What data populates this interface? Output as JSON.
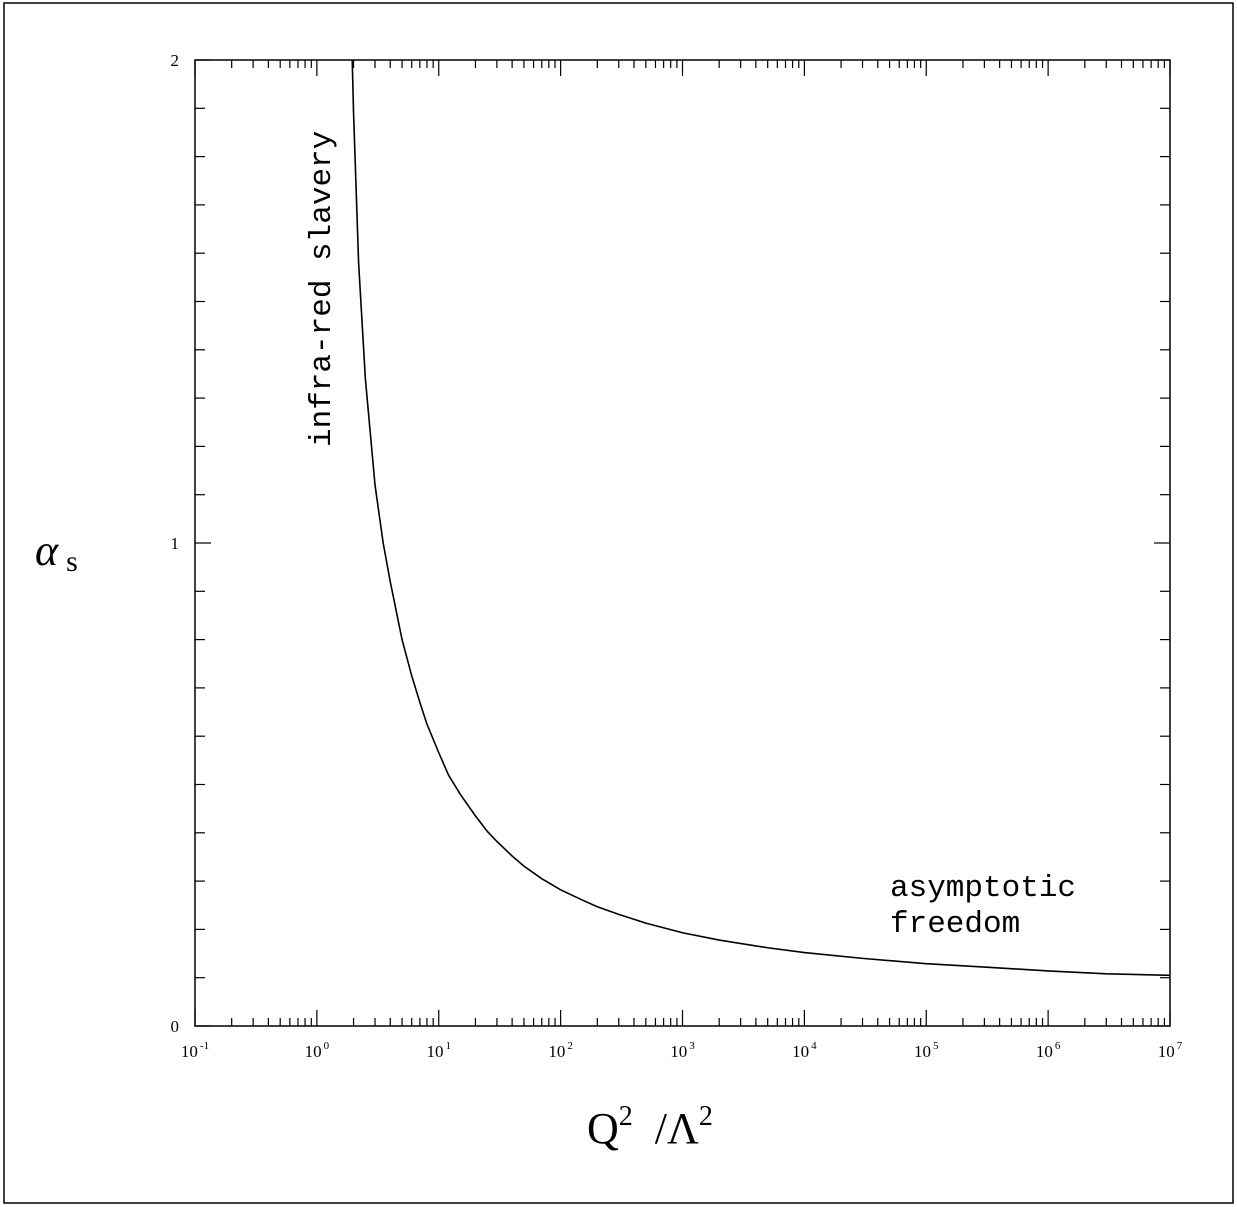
{
  "colors": {
    "line": "#000000",
    "background": "#ffffff"
  },
  "chart_data": {
    "type": "line",
    "title": "",
    "ylabel": {
      "symbol": "α",
      "subscript": "s"
    },
    "xlabel": {
      "q": "Q",
      "q_exp": "2",
      "sep": "/",
      "lam": "Λ",
      "lam_exp": "2"
    },
    "xscale": "log",
    "xlim": [
      0.1,
      10000000
    ],
    "ylim": [
      0,
      2
    ],
    "x_tick_labels": [
      {
        "base": "10",
        "exp": "-1",
        "value": 0.1
      },
      {
        "base": "10",
        "exp": "0",
        "value": 1
      },
      {
        "base": "10",
        "exp": "1",
        "value": 10
      },
      {
        "base": "10",
        "exp": "2",
        "value": 100
      },
      {
        "base": "10",
        "exp": "3",
        "value": 1000
      },
      {
        "base": "10",
        "exp": "4",
        "value": 10000
      },
      {
        "base": "10",
        "exp": "5",
        "value": 100000
      },
      {
        "base": "10",
        "exp": "6",
        "value": 1000000
      },
      {
        "base": "10",
        "exp": "7",
        "value": 10000000
      }
    ],
    "y_tick_labels": [
      "0",
      "1",
      "2"
    ],
    "y_tick_values": [
      0,
      1,
      2
    ],
    "y_minor_step": 0.1,
    "grid": false,
    "series": [
      {
        "x": [
          1.95,
          2.0,
          2.2,
          2.5,
          3,
          3.5,
          4,
          5,
          6,
          7,
          8,
          10,
          12,
          15,
          20,
          25,
          30,
          40,
          50,
          70,
          100,
          150,
          200,
          300,
          500,
          1000,
          2000,
          5000,
          10000,
          30000,
          100000,
          300000,
          1000000,
          3000000,
          10000000
        ],
        "y": [
          2.0,
          1.89,
          1.58,
          1.34,
          1.12,
          1.0,
          0.92,
          0.8,
          0.725,
          0.67,
          0.625,
          0.566,
          0.52,
          0.48,
          0.435,
          0.403,
          0.382,
          0.352,
          0.331,
          0.305,
          0.282,
          0.261,
          0.247,
          0.231,
          0.213,
          0.193,
          0.178,
          0.162,
          0.152,
          0.14,
          0.129,
          0.122,
          0.114,
          0.108,
          0.105
        ]
      }
    ],
    "annotations": {
      "vertical": "infra-red slavery",
      "lines": [
        "asymptotic",
        "freedom"
      ]
    }
  }
}
